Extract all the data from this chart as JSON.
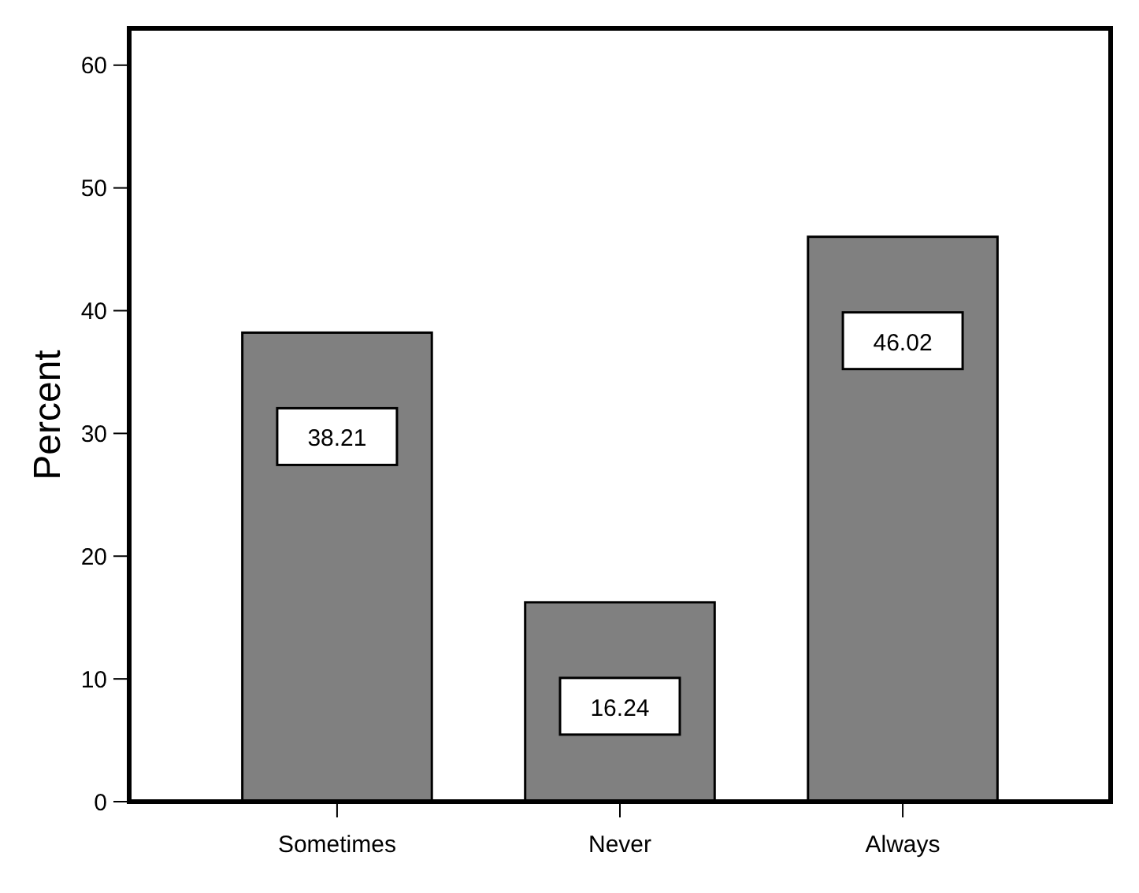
{
  "chart_data": {
    "type": "bar",
    "ylabel": "Percent",
    "categories": [
      "Sometimes",
      "Never",
      "Always"
    ],
    "values": [
      38.21,
      16.24,
      46.02
    ],
    "color": "#808080",
    "ylim": [
      0,
      63
    ],
    "yticks": [
      0,
      10,
      20,
      30,
      40,
      50,
      60
    ],
    "data_labels": true,
    "grid": false
  }
}
